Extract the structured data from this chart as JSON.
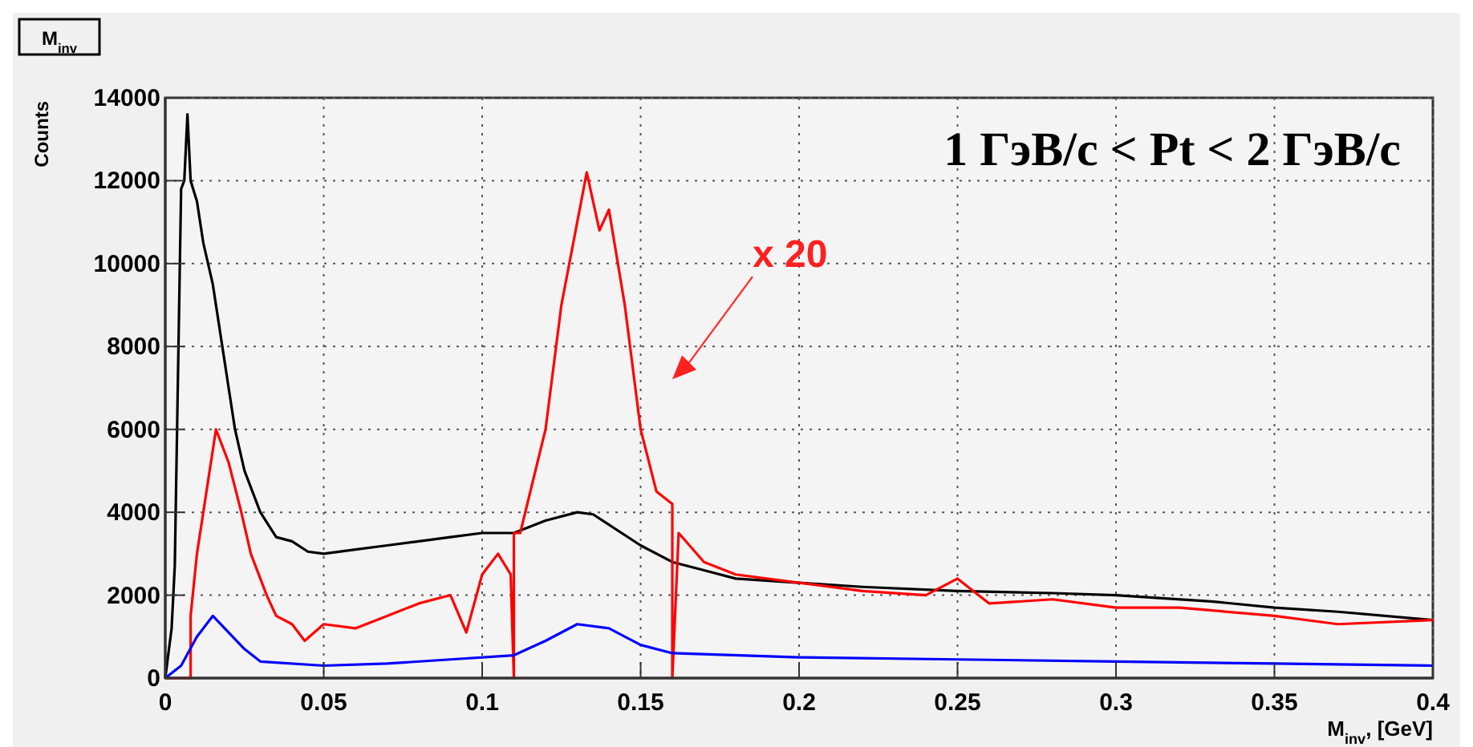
{
  "chart_data": {
    "type": "line",
    "title": "M$_{inv}$",
    "xlabel": "M$_{inv}$, [GeV]",
    "ylabel": "Counts",
    "annotations": [
      "1 ГэВ/с < Pt < 2 ГэВ/с",
      "x 20"
    ],
    "xlim": [
      0,
      0.4
    ],
    "xticks": [
      0,
      0.05,
      0.1,
      0.15,
      0.2,
      0.25,
      0.3,
      0.35,
      0.4
    ],
    "ylim": [
      0,
      14000
    ],
    "yticks": [
      0,
      2000,
      4000,
      6000,
      8000,
      10000,
      12000,
      14000
    ],
    "grid": true,
    "series": [
      {
        "color": "#000000",
        "x": [
          0,
          0.002,
          0.003,
          0.005,
          0.006,
          0.007,
          0.008,
          0.01,
          0.012,
          0.015,
          0.018,
          0.02,
          0.022,
          0.025,
          0.03,
          0.035,
          0.04,
          0.045,
          0.05,
          0.06,
          0.07,
          0.08,
          0.09,
          0.1,
          0.11,
          0.12,
          0.13,
          0.135,
          0.14,
          0.15,
          0.16,
          0.17,
          0.18,
          0.2,
          0.22,
          0.25,
          0.28,
          0.3,
          0.33,
          0.35,
          0.37,
          0.4
        ],
        "values": [
          0,
          1200,
          2700,
          11800,
          12000,
          13600,
          12000,
          11500,
          10500,
          9500,
          8000,
          7000,
          6000,
          5000,
          4000,
          3400,
          3300,
          3050,
          3000,
          3100,
          3200,
          3300,
          3400,
          3500,
          3500,
          3800,
          4000,
          3950,
          3700,
          3200,
          2800,
          2600,
          2400,
          2300,
          2200,
          2100,
          2050,
          2000,
          1850,
          1700,
          1600,
          1400
        ]
      },
      {
        "color": "#ff0000",
        "x": [
          0,
          0.008,
          0.008,
          0.01,
          0.012,
          0.016,
          0.02,
          0.024,
          0.027,
          0.032,
          0.035,
          0.04,
          0.044,
          0.05,
          0.06,
          0.07,
          0.08,
          0.09,
          0.095,
          0.1,
          0.105,
          0.109,
          0.11,
          0.11,
          0.112,
          0.12,
          0.125,
          0.13,
          0.133,
          0.137,
          0.14,
          0.145,
          0.15,
          0.155,
          0.16,
          0.16,
          0.162,
          0.17,
          0.18,
          0.2,
          0.22,
          0.24,
          0.25,
          0.26,
          0.28,
          0.3,
          0.32,
          0.35,
          0.37,
          0.4
        ],
        "values": [
          0,
          0,
          1500,
          3000,
          4000,
          6000,
          5200,
          4000,
          3000,
          2000,
          1500,
          1300,
          900,
          1300,
          1200,
          1500,
          1800,
          2000,
          1100,
          2500,
          3000,
          2500,
          0,
          3500,
          3500,
          6000,
          9000,
          11000,
          12200,
          10800,
          11300,
          9000,
          6000,
          4500,
          4200,
          0,
          3500,
          2800,
          2500,
          2300,
          2100,
          2000,
          2400,
          1800,
          1900,
          1700,
          1700,
          1500,
          1300,
          1400
        ]
      },
      {
        "color": "#0000ff",
        "x": [
          0,
          0.005,
          0.01,
          0.015,
          0.02,
          0.025,
          0.03,
          0.05,
          0.07,
          0.09,
          0.11,
          0.12,
          0.13,
          0.14,
          0.15,
          0.16,
          0.2,
          0.25,
          0.3,
          0.35,
          0.4
        ],
        "values": [
          0,
          300,
          1000,
          1500,
          1100,
          700,
          400,
          300,
          350,
          450,
          550,
          900,
          1300,
          1200,
          800,
          600,
          500,
          450,
          400,
          350,
          300
        ]
      }
    ]
  }
}
